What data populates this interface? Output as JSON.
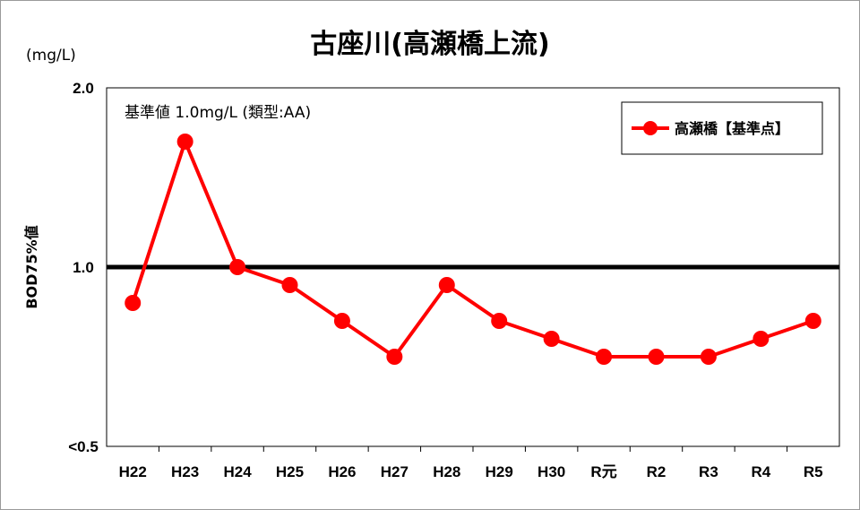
{
  "chart_data": {
    "type": "line",
    "title": "古座川(高瀬橋上流)",
    "unit": "(mg/L)",
    "ylabel": "BOD75%値",
    "categories": [
      "H22",
      "H23",
      "H24",
      "H25",
      "H26",
      "H27",
      "H28",
      "H29",
      "H30",
      "R元",
      "R2",
      "R3",
      "R4",
      "R5"
    ],
    "series": [
      {
        "name": "高瀬橋【基準点】",
        "color": "#ff0000",
        "values": [
          0.9,
          1.7,
          1.0,
          0.95,
          0.85,
          0.75,
          0.95,
          0.85,
          0.8,
          0.75,
          0.75,
          0.75,
          0.8,
          0.85
        ]
      }
    ],
    "ylim": [
      0.5,
      2.0
    ],
    "yticks": [
      "2.0",
      "1.0",
      "<0.5"
    ],
    "ytick_values": [
      2.0,
      1.0,
      0.5
    ],
    "y_axis_note": "axis is nonlinear: 0.5 to 1.0 occupies the same height as 1.0 to 2.0",
    "reference_line": {
      "value": 1.0,
      "label": "基準値  1.0mg/L (類型:AA)",
      "color": "#000000"
    },
    "grid": false,
    "legend_position": "top-right"
  }
}
